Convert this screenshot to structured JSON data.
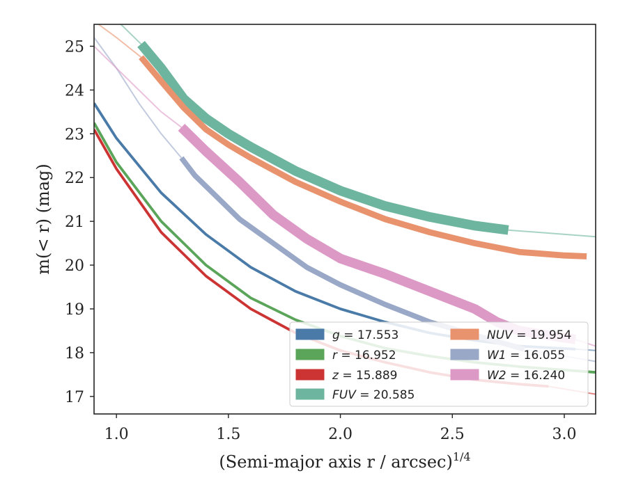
{
  "chart_data": {
    "type": "line",
    "xlabel": "(Semi-major axis r / arcsec)",
    "xlabel_exponent": "1/4",
    "ylabel": "m(< r) (mag)",
    "xlim": [
      0.9,
      3.14
    ],
    "ylim": [
      25.5,
      16.6
    ],
    "y_inverted": true,
    "x_ticks": [
      "1.0",
      "1.5",
      "2.0",
      "2.5",
      "3.0"
    ],
    "y_ticks": [
      "17",
      "18",
      "19",
      "20",
      "21",
      "22",
      "23",
      "24",
      "25"
    ],
    "grid": false,
    "legend_position": "lower-right",
    "series": [
      {
        "name": "g = 17.553",
        "legend_var": "g",
        "legend_val": "17.553",
        "color": "#4a7ba8",
        "width_mag": 0.06,
        "x": [
          0.9,
          1.0,
          1.2,
          1.4,
          1.6,
          1.8,
          2.0,
          2.2,
          2.4,
          2.6,
          2.8,
          3.05
        ],
        "y": [
          23.7,
          22.9,
          21.65,
          20.7,
          19.95,
          19.4,
          19.0,
          18.7,
          18.45,
          18.28,
          18.15,
          18.08
        ],
        "ext_x": [
          3.05,
          3.14
        ],
        "ext_y": [
          18.08,
          18.05
        ]
      },
      {
        "name": "r = 16.952",
        "legend_var": "r",
        "legend_val": "16.952",
        "color": "#5aa55a",
        "width_mag": 0.06,
        "x": [
          0.9,
          1.0,
          1.2,
          1.4,
          1.6,
          1.8,
          2.0,
          2.2,
          2.4,
          2.6,
          2.8,
          3.14
        ],
        "y": [
          23.25,
          22.35,
          21.0,
          20.0,
          19.25,
          18.75,
          18.38,
          18.1,
          17.92,
          17.78,
          17.68,
          17.55
        ],
        "ext_x": [],
        "ext_y": []
      },
      {
        "name": "z = 15.889",
        "legend_var": "z",
        "legend_val": "15.889",
        "color": "#cc3333",
        "width_mag": 0.06,
        "x": [
          0.9,
          1.0,
          1.2,
          1.4,
          1.6,
          1.8,
          2.0,
          2.2,
          2.4,
          2.6,
          2.8,
          2.93
        ],
        "y": [
          23.1,
          22.2,
          20.75,
          19.75,
          19.0,
          18.45,
          18.05,
          17.78,
          17.55,
          17.38,
          17.28,
          17.23
        ],
        "ext_x": [
          2.93,
          3.14
        ],
        "ext_y": [
          17.23,
          17.05
        ]
      },
      {
        "name": "FUV = 20.585",
        "legend_var": "FUV",
        "legend_val": "20.585",
        "color": "#6db59e",
        "width_mag": 0.22,
        "x": [
          1.11,
          1.2,
          1.3,
          1.4,
          1.5,
          1.6,
          1.8,
          2.0,
          2.2,
          2.4,
          2.6,
          2.75
        ],
        "y": [
          25.05,
          24.5,
          23.8,
          23.35,
          23.0,
          22.7,
          22.15,
          21.7,
          21.35,
          21.1,
          20.9,
          20.8
        ],
        "ext_x": [
          0.9,
          1.0,
          1.11
        ],
        "ext_y": [
          26.2,
          25.6,
          25.05
        ],
        "ext2_x": [
          2.75,
          3.14
        ],
        "ext2_y": [
          20.8,
          20.65
        ]
      },
      {
        "name": "NUV = 19.954",
        "legend_var": "NUV",
        "legend_val": "19.954",
        "color": "#e8936e",
        "width_mag": 0.14,
        "x": [
          1.11,
          1.2,
          1.3,
          1.4,
          1.5,
          1.6,
          1.8,
          2.0,
          2.2,
          2.4,
          2.6,
          2.8,
          3.0,
          3.1
        ],
        "y": [
          24.75,
          24.2,
          23.6,
          23.1,
          22.75,
          22.45,
          21.9,
          21.45,
          21.05,
          20.75,
          20.5,
          20.3,
          20.22,
          20.2
        ],
        "ext_x": [
          0.92,
          1.0,
          1.11
        ],
        "ext_y": [
          25.5,
          25.2,
          24.75
        ]
      },
      {
        "name": "W1 = 16.055",
        "legend_var": "W1",
        "legend_val": "16.055",
        "color": "#9aa8c8",
        "width_mag": 0.12,
        "x": [
          1.29,
          1.35,
          1.45,
          1.55,
          1.7,
          1.85,
          2.0,
          2.2,
          2.4,
          2.6,
          2.82
        ],
        "y": [
          22.45,
          22.05,
          21.55,
          21.05,
          20.5,
          19.95,
          19.55,
          19.1,
          18.7,
          18.4,
          18.08
        ],
        "ext_x": [
          0.9,
          1.0,
          1.1,
          1.2,
          1.29
        ],
        "ext_y": [
          25.2,
          24.5,
          23.7,
          23.0,
          22.45
        ],
        "ext2_x": [
          2.82,
          3.14
        ],
        "ext2_y": [
          18.08,
          17.8
        ]
      },
      {
        "name": "W2 = 16.240",
        "legend_var": "W2",
        "legend_val": "16.240",
        "color": "#dd99c6",
        "width_mag": 0.22,
        "x": [
          1.29,
          1.4,
          1.55,
          1.7,
          1.85,
          2.0,
          2.2,
          2.4,
          2.6,
          2.7,
          2.8,
          3.05
        ],
        "y": [
          23.15,
          22.6,
          21.9,
          21.15,
          20.6,
          20.15,
          19.8,
          19.4,
          19.0,
          18.7,
          18.5,
          18.3
        ],
        "ext_x": [
          0.9,
          1.0,
          1.1,
          1.2,
          1.29
        ],
        "ext_y": [
          25.0,
          24.5,
          24.0,
          23.5,
          23.15
        ],
        "ext2_x": [
          3.05,
          3.14
        ],
        "ext2_y": [
          18.3,
          18.15
        ]
      }
    ]
  }
}
